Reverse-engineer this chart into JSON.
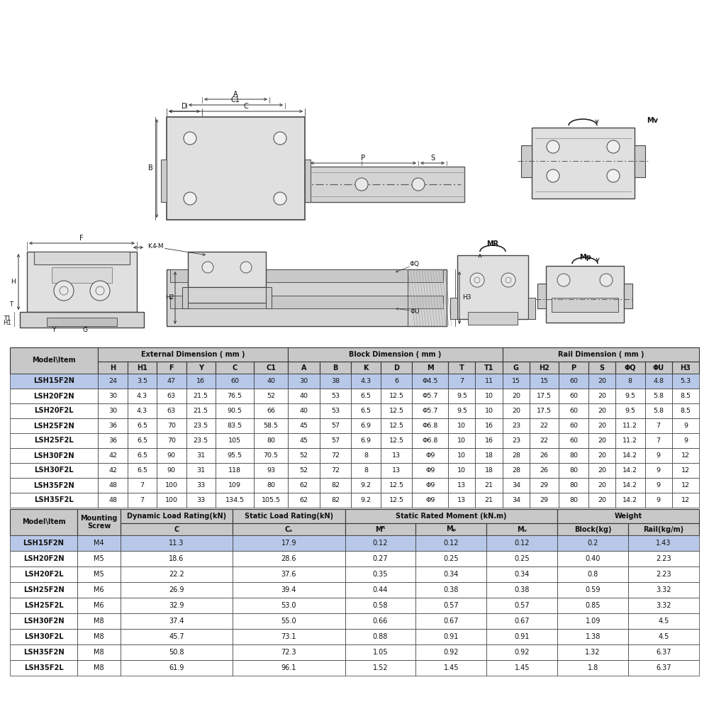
{
  "background_color": "#ffffff",
  "table1_header_bg": "#c8c8c8",
  "table1_highlight_bg": "#b8c8e8",
  "table2_header_bg": "#c8c8c8",
  "table2_highlight_bg": "#b8c8e8",
  "table1_rows": [
    [
      "LSH15F2N",
      "24",
      "3.5",
      "47",
      "16",
      "60",
      "40",
      "30",
      "38",
      "4.3",
      "6",
      "Φ4.5",
      "7",
      "11",
      "15",
      "15",
      "60",
      "20",
      "8",
      "4.8",
      "5.3"
    ],
    [
      "LSH20F2N",
      "30",
      "4.3",
      "63",
      "21.5",
      "76.5",
      "52",
      "40",
      "53",
      "6.5",
      "12.5",
      "Φ5.7",
      "9.5",
      "10",
      "20",
      "17.5",
      "60",
      "20",
      "9.5",
      "5.8",
      "8.5"
    ],
    [
      "LSH20F2L",
      "30",
      "4.3",
      "63",
      "21.5",
      "90.5",
      "66",
      "40",
      "53",
      "6.5",
      "12.5",
      "Φ5.7",
      "9.5",
      "10",
      "20",
      "17.5",
      "60",
      "20",
      "9.5",
      "5.8",
      "8.5"
    ],
    [
      "LSH25F2N",
      "36",
      "6.5",
      "70",
      "23.5",
      "83.5",
      "58.5",
      "45",
      "57",
      "6.9",
      "12.5",
      "Φ6.8",
      "10",
      "16",
      "23",
      "22",
      "60",
      "20",
      "11.2",
      "7",
      "9"
    ],
    [
      "LSH25F2L",
      "36",
      "6.5",
      "70",
      "23.5",
      "105",
      "80",
      "45",
      "57",
      "6.9",
      "12.5",
      "Φ6.8",
      "10",
      "16",
      "23",
      "22",
      "60",
      "20",
      "11.2",
      "7",
      "9"
    ],
    [
      "LSH30F2N",
      "42",
      "6.5",
      "90",
      "31",
      "95.5",
      "70.5",
      "52",
      "72",
      "8",
      "13",
      "Φ9",
      "10",
      "18",
      "28",
      "26",
      "80",
      "20",
      "14.2",
      "9",
      "12"
    ],
    [
      "LSH30F2L",
      "42",
      "6.5",
      "90",
      "31",
      "118",
      "93",
      "52",
      "72",
      "8",
      "13",
      "Φ9",
      "10",
      "18",
      "28",
      "26",
      "80",
      "20",
      "14.2",
      "9",
      "12"
    ],
    [
      "LSH35F2N",
      "48",
      "7",
      "100",
      "33",
      "109",
      "80",
      "62",
      "82",
      "9.2",
      "12.5",
      "Φ9",
      "13",
      "21",
      "34",
      "29",
      "80",
      "20",
      "14.2",
      "9",
      "12"
    ],
    [
      "LSH35F2L",
      "48",
      "7",
      "100",
      "33",
      "134.5",
      "105.5",
      "62",
      "82",
      "9.2",
      "12.5",
      "Φ9",
      "13",
      "21",
      "34",
      "29",
      "80",
      "20",
      "14.2",
      "9",
      "12"
    ]
  ],
  "table2_rows": [
    [
      "LSH15F2N",
      "M4",
      "11.3",
      "17.9",
      "0.12",
      "0.12",
      "0.12",
      "0.2",
      "1.43"
    ],
    [
      "LSH20F2N",
      "M5",
      "18.6",
      "28.6",
      "0.27",
      "0.25",
      "0.25",
      "0.40",
      "2.23"
    ],
    [
      "LSH20F2L",
      "M5",
      "22.2",
      "37.6",
      "0.35",
      "0.34",
      "0.34",
      "0.8",
      "2.23"
    ],
    [
      "LSH25F2N",
      "M6",
      "26.9",
      "39.4",
      "0.44",
      "0.38",
      "0.38",
      "0.59",
      "3.32"
    ],
    [
      "LSH25F2L",
      "M6",
      "32.9",
      "53.0",
      "0.58",
      "0.57",
      "0.57",
      "0.85",
      "3.32"
    ],
    [
      "LSH30F2N",
      "M8",
      "37.4",
      "55.0",
      "0.66",
      "0.67",
      "0.67",
      "1.09",
      "4.5"
    ],
    [
      "LSH30F2L",
      "M8",
      "45.7",
      "73.1",
      "0.88",
      "0.91",
      "0.91",
      "1.38",
      "4.5"
    ],
    [
      "LSH35F2N",
      "M8",
      "50.8",
      "72.3",
      "1.05",
      "0.92",
      "0.92",
      "1.32",
      "6.37"
    ],
    [
      "LSH35F2L",
      "M8",
      "61.9",
      "96.1",
      "1.52",
      "1.45",
      "1.45",
      "1.8",
      "6.37"
    ]
  ]
}
